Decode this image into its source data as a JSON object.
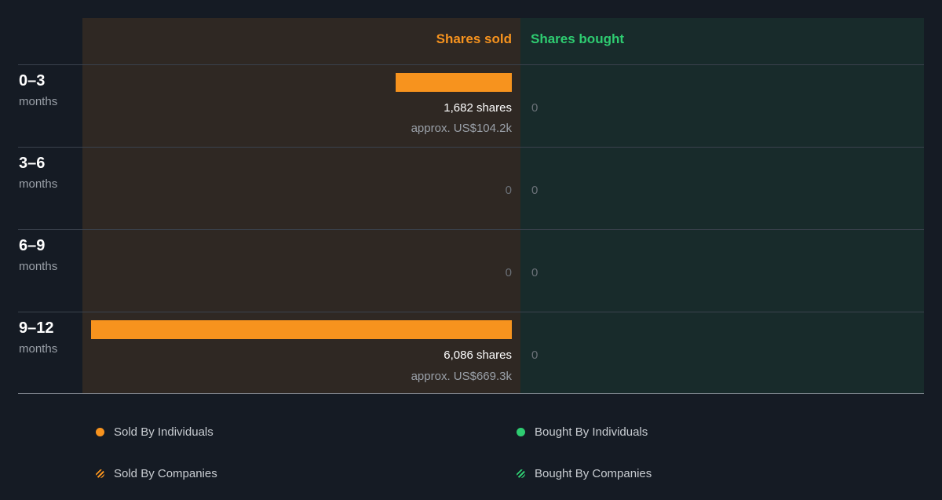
{
  "header": {
    "sold_label": "Shares sold",
    "bought_label": "Shares bought"
  },
  "colors": {
    "sold": "#f7931e",
    "bought": "#2ecc71"
  },
  "chart_data": {
    "type": "bar",
    "categories": [
      "0–3 months",
      "3–6 months",
      "6–9 months",
      "9–12 months"
    ],
    "series": [
      {
        "name": "Shares sold",
        "values": [
          1682,
          0,
          0,
          6086
        ]
      },
      {
        "name": "Shares bought",
        "values": [
          0,
          0,
          0,
          0
        ]
      }
    ],
    "approx_value_sold": [
      "approx. US$104.2k",
      "",
      "",
      "approx. US$669.3k"
    ]
  },
  "rows": [
    {
      "range": "0–3",
      "unit": "months",
      "sold_shares": 1682,
      "sold_text": "1,682 shares",
      "sold_approx": "approx. US$104.2k",
      "sold_zero": "",
      "bought_zero": "0"
    },
    {
      "range": "3–6",
      "unit": "months",
      "sold_shares": 0,
      "sold_text": "",
      "sold_approx": "",
      "sold_zero": "0",
      "bought_zero": "0"
    },
    {
      "range": "6–9",
      "unit": "months",
      "sold_shares": 0,
      "sold_text": "",
      "sold_approx": "",
      "sold_zero": "0",
      "bought_zero": "0"
    },
    {
      "range": "9–12",
      "unit": "months",
      "sold_shares": 6086,
      "sold_text": "6,086 shares",
      "sold_approx": "approx. US$669.3k",
      "sold_zero": "",
      "bought_zero": "0"
    }
  ],
  "legend": {
    "sold_individuals": "Sold By Individuals",
    "bought_individuals": "Bought By Individuals",
    "sold_companies": "Sold By Companies",
    "bought_companies": "Bought By Companies"
  }
}
